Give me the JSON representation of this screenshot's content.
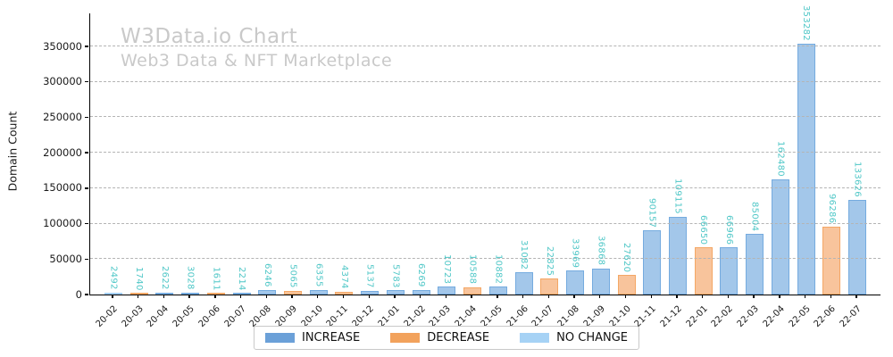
{
  "header": {
    "title": "W3Data.io Chart",
    "subtitle": "Web3 Data & NFT Marketplace"
  },
  "chart_data": {
    "type": "bar",
    "title": "W3Data.io Chart",
    "subtitle": "Web3 Data & NFT Marketplace",
    "xlabel": "",
    "ylabel": "Domain Count",
    "categories": [
      "20-02",
      "20-03",
      "20-04",
      "20-05",
      "20-06",
      "20-07",
      "20-08",
      "20-09",
      "20-10",
      "20-11",
      "20-12",
      "21-01",
      "21-02",
      "21-03",
      "21-04",
      "21-05",
      "21-06",
      "21-07",
      "21-08",
      "21-09",
      "21-10",
      "21-11",
      "21-12",
      "22-01",
      "22-02",
      "22-03",
      "22-04",
      "22-05",
      "22-06",
      "22-07"
    ],
    "values": [
      2492,
      1740,
      2622,
      3028,
      1611,
      2214,
      6246,
      5065,
      6355,
      4374,
      5137,
      5783,
      6269,
      10723,
      10588,
      10882,
      31082,
      22825,
      33969,
      36868,
      27620,
      90157,
      109115,
      66650,
      66966,
      85004,
      162480,
      353282,
      96286,
      133626
    ],
    "bar_status": [
      "no_change",
      "decrease",
      "increase",
      "increase",
      "decrease",
      "increase",
      "increase",
      "decrease",
      "increase",
      "decrease",
      "increase",
      "increase",
      "increase",
      "increase",
      "decrease",
      "increase",
      "increase",
      "decrease",
      "increase",
      "increase",
      "decrease",
      "increase",
      "increase",
      "decrease",
      "increase",
      "increase",
      "increase",
      "increase",
      "decrease",
      "increase"
    ],
    "value_labels_rotated": true,
    "yticks": [
      0,
      50000,
      100000,
      150000,
      200000,
      250000,
      300000,
      350000
    ],
    "ylim": [
      0,
      396000
    ],
    "grid": "horizontal-dashed",
    "legend": {
      "position": "bottom-center",
      "entries": [
        {
          "label": "INCREASE",
          "status": "increase",
          "color": "#6ba0d8"
        },
        {
          "label": "DECREASE",
          "status": "decrease",
          "color": "#f2a25c"
        },
        {
          "label": "NO CHANGE",
          "status": "no_change",
          "color": "#a6d2f5"
        }
      ]
    },
    "colors": {
      "increase_fill": "#a3c7ea",
      "increase_edge": "#75abdf",
      "decrease_fill": "#f8c49c",
      "decrease_edge": "#f4a765",
      "no_change_fill": "#bedcf8",
      "no_change_edge": "#a3cff6",
      "value_label": "#4fc7c7",
      "title_gray": "#c9c9c9",
      "gridline": "#b4b4b4"
    }
  }
}
